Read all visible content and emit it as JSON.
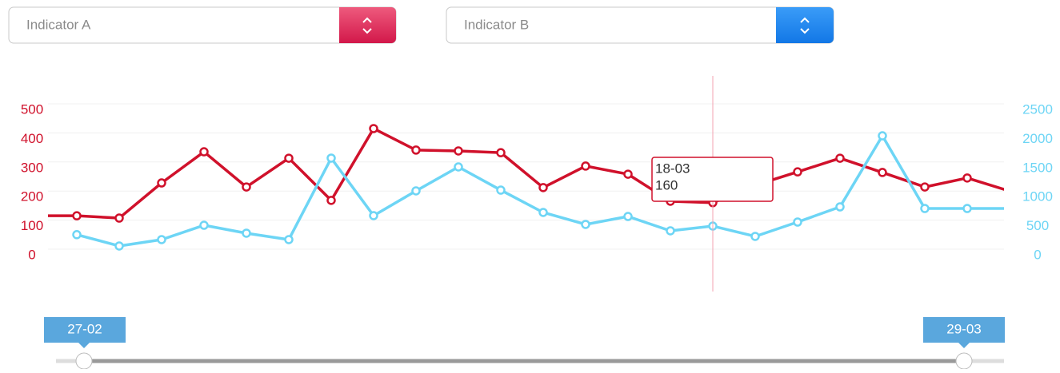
{
  "controls": {
    "selector_a": "Indicator A",
    "selector_b": "Indicator B",
    "range_start": "27-02",
    "range_end": "29-03"
  },
  "chart_data": {
    "type": "line",
    "categories": [
      null,
      null,
      null,
      null,
      null,
      null,
      null,
      null,
      null,
      null,
      null,
      null,
      null,
      null,
      null,
      null,
      null,
      null,
      null,
      null,
      null,
      null,
      null,
      null
    ],
    "series": [
      {
        "name": "Indicator A",
        "color": "#d0112b",
        "values": [
          115,
          115,
          107,
          228,
          335,
          214,
          313,
          168,
          415,
          341,
          338,
          332,
          212,
          286,
          258,
          165,
          160,
          220,
          266,
          313,
          264,
          214,
          245,
          200
        ]
      },
      {
        "name": "Indicator B",
        "color": "#6dd5f5",
        "axis": "y2",
        "values": [
          null,
          250,
          55,
          165,
          412,
          275,
          165,
          1566,
          577,
          1003,
          1415,
          1016,
          632,
          426,
          563,
          316,
          398,
          220,
          467,
          728,
          1950,
          700,
          700,
          700
        ]
      }
    ],
    "ylim": [
      0,
      500
    ],
    "yticks": [
      0,
      100,
      200,
      300,
      400,
      500
    ],
    "y2lim": [
      0,
      2500
    ],
    "y2ticks": [
      0,
      500,
      1000,
      1500,
      2000,
      2500
    ],
    "grid": true,
    "tooltip": {
      "label": "18-03",
      "index": 16
    }
  }
}
